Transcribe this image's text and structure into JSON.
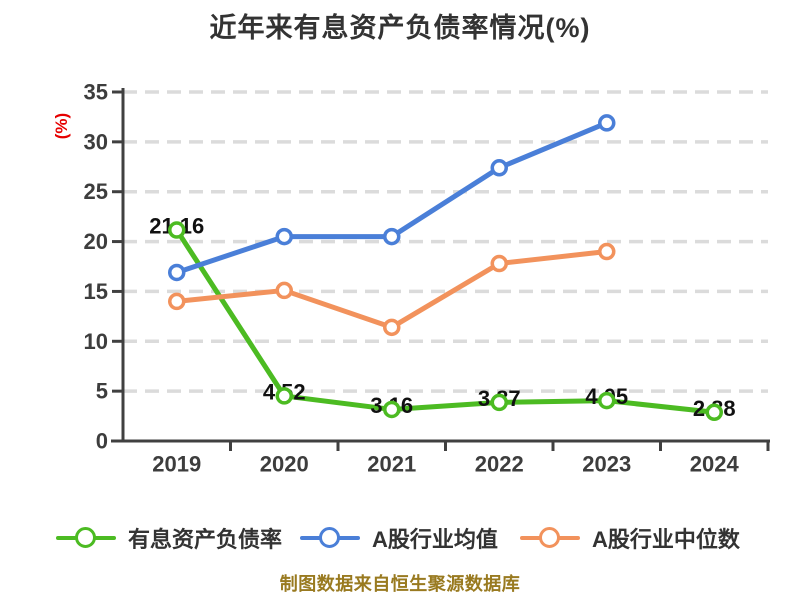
{
  "title": "近年来有息资产负债率情况(%)",
  "unit_label": "(%)",
  "footer": {
    "text": "制图数据来自恒生聚源数据库",
    "color": "#997a20"
  },
  "palette": {
    "axis": "#404040",
    "grid": "#dbdbdb",
    "tick_text": "#3d3d3d",
    "data_label": "#111111",
    "title_text": "#333333",
    "unit_text": "#e60000"
  },
  "chart_data": {
    "type": "line",
    "title": "近年来有息资产负债率情况(%)",
    "xlabel": "",
    "ylabel": "(%)",
    "categories": [
      "2019",
      "2020",
      "2021",
      "2022",
      "2023",
      "2024"
    ],
    "ylim": [
      0,
      35
    ],
    "yticks": [
      0,
      5,
      10,
      15,
      20,
      25,
      30,
      35
    ],
    "grid": true,
    "grid_style": "dashed",
    "legend_position": "bottom",
    "series": [
      {
        "name": "有息资产负债率",
        "color": "#4cbb22",
        "values": [
          21.16,
          4.52,
          3.16,
          3.87,
          4.05,
          2.88
        ],
        "labels": [
          "21.16",
          "4.52",
          "3.16",
          "3.87",
          "4.05",
          "2.88"
        ],
        "show_value_labels": true
      },
      {
        "name": "A股行业均值",
        "color": "#4a7fd8",
        "values": [
          16.9,
          20.5,
          20.5,
          27.4,
          31.9,
          null
        ],
        "show_value_labels": false
      },
      {
        "name": "A股行业中位数",
        "color": "#f2925c",
        "values": [
          14.0,
          15.1,
          11.4,
          17.8,
          19.0,
          null
        ],
        "show_value_labels": false
      }
    ]
  }
}
